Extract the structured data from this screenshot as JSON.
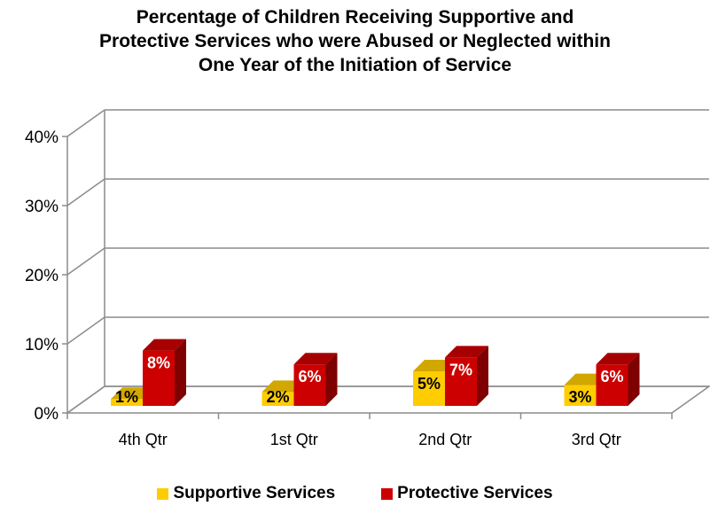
{
  "chart_data": {
    "type": "bar",
    "title_lines": [
      "Percentage of Children Receiving Supportive and",
      "Protective Services who were Abused or Neglected within",
      "One Year of the Initiation of Service"
    ],
    "categories": [
      "4th Qtr",
      "1st Qtr",
      "2nd Qtr",
      "3rd Qtr"
    ],
    "series": [
      {
        "name": "Supportive Services",
        "values": [
          1,
          2,
          5,
          3
        ],
        "labels": [
          "1%",
          "2%",
          "5%",
          "3%"
        ],
        "color": "#FFCC00"
      },
      {
        "name": "Protective Services",
        "values": [
          8,
          6,
          7,
          6
        ],
        "labels": [
          "8%",
          "6%",
          "7%",
          "6%"
        ],
        "color": "#CC0000"
      }
    ],
    "y_ticks": [
      "0%",
      "10%",
      "20%",
      "30%",
      "40%"
    ],
    "ylim": [
      0,
      40
    ],
    "grid": true,
    "legend_position": "bottom",
    "style": "3d-clustered-column"
  }
}
